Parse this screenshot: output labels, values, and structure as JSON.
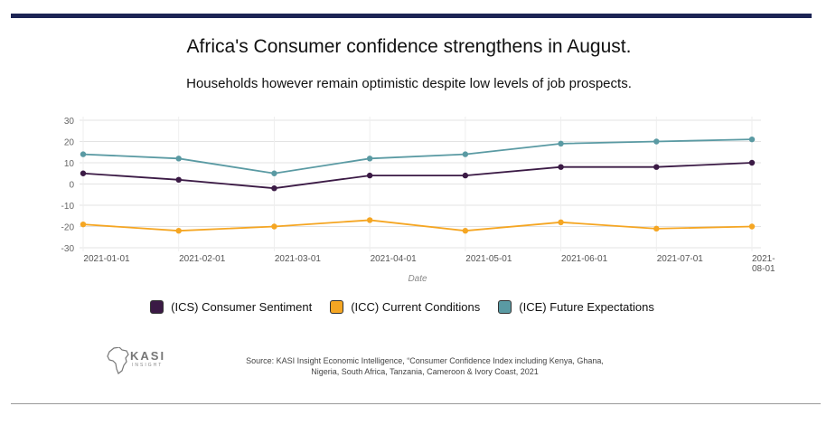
{
  "title": "Africa's Consumer confidence strengthens in August.",
  "subtitle": "Households however remain optimistic despite low levels of job prospects.",
  "colors": {
    "accent_bar": "#1c2454",
    "ics": "#3b1a45",
    "icc": "#f5a623",
    "ice": "#5a9aa3"
  },
  "chart_data": {
    "type": "line",
    "xlabel": "Date",
    "ylabel": "",
    "ylim": [
      -30,
      30
    ],
    "yticks": [
      30,
      20,
      10,
      0,
      -10,
      -20,
      -30
    ],
    "x": [
      "2021-01-01",
      "2021-02-01",
      "2021-03-01",
      "2021-04-01",
      "2021-05-01",
      "2021-06-01",
      "2021-07-01",
      "2021-08-01"
    ],
    "series": [
      {
        "name": "(ICS) Consumer Sentiment",
        "color": "#3b1a45",
        "values": [
          5,
          2,
          -2,
          4,
          4,
          8,
          8,
          10
        ]
      },
      {
        "name": "(ICC) Current Conditions",
        "color": "#f5a623",
        "values": [
          -19,
          -22,
          -20,
          -17,
          -22,
          -18,
          -21,
          -20
        ]
      },
      {
        "name": "(ICE) Future Expectations",
        "color": "#5a9aa3",
        "values": [
          14,
          12,
          5,
          12,
          14,
          19,
          20,
          21
        ]
      }
    ]
  },
  "logo": {
    "name": "KASI",
    "tagline": "INSIGHT"
  },
  "source": {
    "line1": "Source: KASI Insight Economic Intelligence, “Consumer Confidence Index including Kenya, Ghana,",
    "line2": "Nigeria, South Africa, Tanzania, Cameroon & Ivory Coast, 2021"
  }
}
